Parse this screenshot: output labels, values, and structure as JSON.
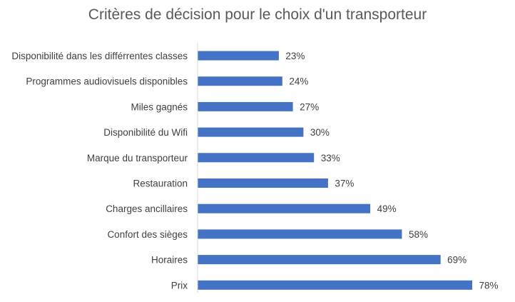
{
  "chart_data": {
    "type": "bar",
    "orientation": "horizontal",
    "title": "Critères de décision pour le choix d'un transporteur",
    "categories": [
      "Disponibilité dans les différrentes classes",
      "Programmes audiovisuels disponibles",
      "Miles gagnés",
      "Disponibilité du Wifi",
      "Marque du transporteur",
      "Restauration",
      "Charges ancillaires",
      "Confort des sièges",
      "Horaires",
      "Prix"
    ],
    "values": [
      23,
      24,
      27,
      30,
      33,
      37,
      49,
      58,
      69,
      78
    ],
    "value_labels": [
      "23%",
      "24%",
      "27%",
      "30%",
      "33%",
      "37%",
      "49%",
      "58%",
      "69%",
      "78%"
    ],
    "value_unit": "%",
    "xlim": [
      0,
      80
    ],
    "grid": false,
    "legend": "none",
    "bar_color": "#4472C4"
  }
}
